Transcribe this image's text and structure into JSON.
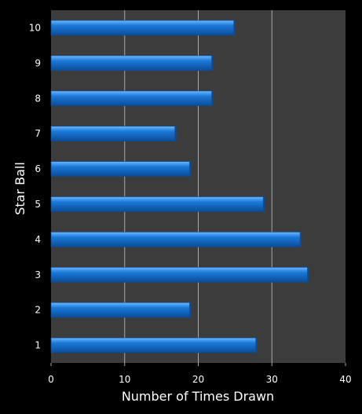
{
  "colors": {
    "background": "#000000",
    "plot_area": "#3c3c3c",
    "grid": "#a8a8a8",
    "bar_fill": "#1a78d8",
    "bar_highlight": "#6ab8ff",
    "bar_shadow": "#0b4c98",
    "text": "#ffffff"
  },
  "chart_data": {
    "type": "bar",
    "orientation": "horizontal",
    "categories": [
      "1",
      "2",
      "3",
      "4",
      "5",
      "6",
      "7",
      "8",
      "9",
      "10"
    ],
    "values": [
      28,
      19,
      35,
      34,
      29,
      19,
      17,
      22,
      22,
      25
    ],
    "xlabel": "Number of Times Drawn",
    "ylabel": "Star Ball",
    "xlim": [
      0,
      40
    ],
    "xticks": [
      "0",
      "10",
      "20",
      "30",
      "40"
    ],
    "grid": "vertical",
    "legend": "none"
  }
}
